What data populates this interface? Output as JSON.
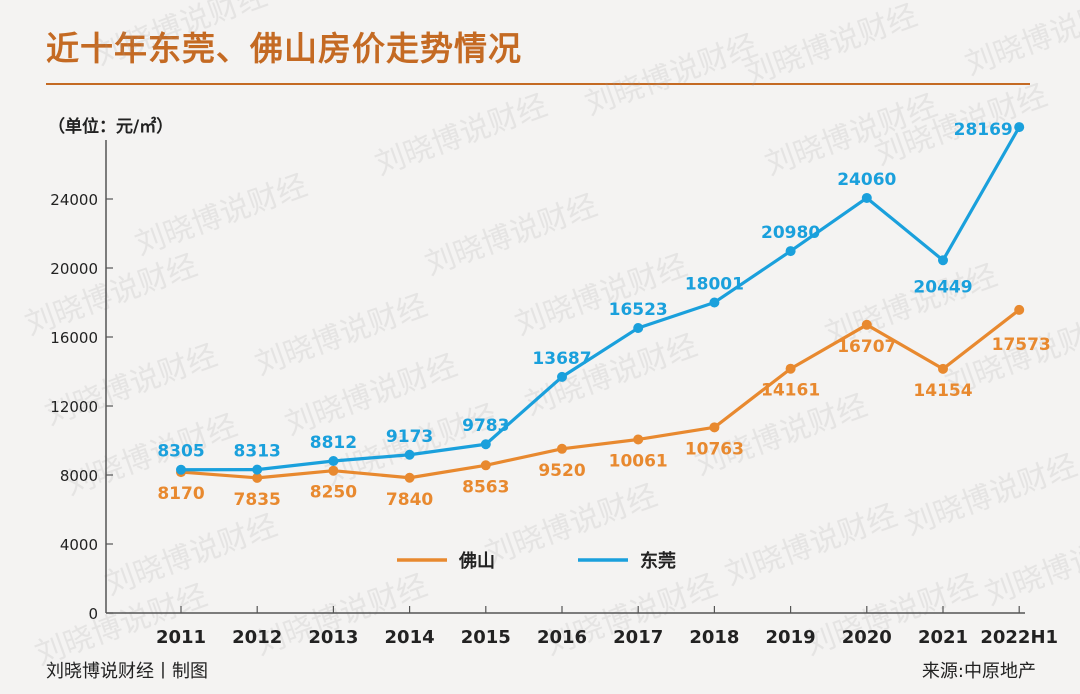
{
  "title": "近十年东莞、佛山房价走势情况",
  "unit": "（单位：元/㎡）",
  "footer": {
    "left": "刘晓博说财经丨制图",
    "right": "来源:中原地产"
  },
  "watermark": "刘晓博说财经",
  "colors": {
    "title": "#c46a23",
    "foshan": "#e8892f",
    "dongguan": "#1aa0dc",
    "axis": "#555555"
  },
  "chart_data": {
    "type": "line",
    "title": "近十年东莞、佛山房价走势情况",
    "ylabel": "（单位：元/㎡）",
    "xlabel": "",
    "categories": [
      "2011",
      "2012",
      "2013",
      "2014",
      "2015",
      "2016",
      "2017",
      "2018",
      "2019",
      "2020",
      "2021",
      "2022H1"
    ],
    "ylim": [
      0,
      28000
    ],
    "yticks": [
      0,
      4000,
      8000,
      12000,
      16000,
      20000,
      24000
    ],
    "grid": false,
    "legend": "bottom-center",
    "series": [
      {
        "name": "佛山",
        "color": "#e8892f",
        "values": [
          8170,
          7835,
          8250,
          7840,
          8563,
          9520,
          10061,
          10763,
          14161,
          16707,
          14154,
          17573
        ]
      },
      {
        "name": "东莞",
        "color": "#1aa0dc",
        "values": [
          8305,
          8313,
          8812,
          9173,
          9783,
          13687,
          16523,
          18001,
          20980,
          24060,
          20449,
          28169
        ]
      }
    ]
  }
}
